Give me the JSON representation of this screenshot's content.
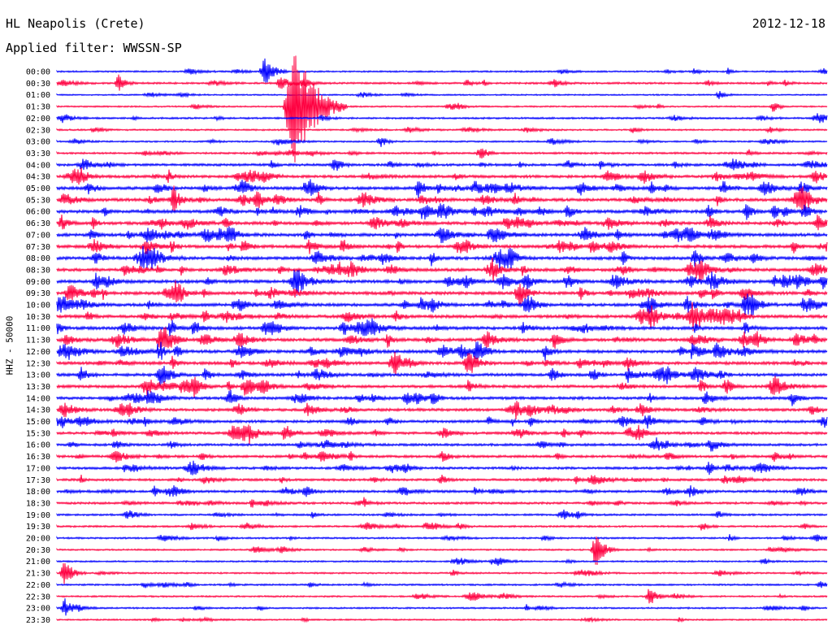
{
  "header": {
    "station": "HL Neapolis (Crete)",
    "filter": "Applied filter: WWSSN-SP",
    "date": "2012-12-18",
    "channel": "HHZ - 50000"
  },
  "colors": {
    "odd_rows": "#0000ff",
    "even_rows": "#ff0040"
  },
  "chart_data": {
    "type": "line",
    "title": "HL Neapolis (Crete)",
    "subtitle": "Applied filter: WWSSN-SP",
    "ylabel": "HHZ - 50000",
    "rows": [
      "00:00",
      "00:30",
      "01:00",
      "01:30",
      "02:00",
      "02:30",
      "03:00",
      "03:30",
      "04:00",
      "04:30",
      "05:00",
      "05:30",
      "06:00",
      "06:30",
      "07:00",
      "07:30",
      "08:00",
      "08:30",
      "09:00",
      "09:30",
      "10:00",
      "10:30",
      "11:00",
      "11:30",
      "12:00",
      "12:30",
      "13:00",
      "13:30",
      "14:00",
      "14:30",
      "15:00",
      "15:30",
      "16:00",
      "16:30",
      "17:00",
      "17:30",
      "18:00",
      "18:30",
      "19:00",
      "19:30",
      "20:00",
      "20:30",
      "21:00",
      "21:30",
      "22:00",
      "22:30",
      "23:00",
      "23:30"
    ],
    "row_activity": [
      0.3,
      0.45,
      0.2,
      0.25,
      0.4,
      0.3,
      0.3,
      0.45,
      0.7,
      0.85,
      1.0,
      1.0,
      1.0,
      1.0,
      1.0,
      1.0,
      1.0,
      1.0,
      1.0,
      1.0,
      1.0,
      1.0,
      1.0,
      1.0,
      1.0,
      0.95,
      0.9,
      0.9,
      0.85,
      0.85,
      0.8,
      0.75,
      0.7,
      0.7,
      0.7,
      0.65,
      0.7,
      0.6,
      0.45,
      0.4,
      0.35,
      0.3,
      0.3,
      0.3,
      0.35,
      0.3,
      0.3,
      0.25
    ],
    "series_colors": [
      "#0000ff",
      "#ff0040"
    ],
    "events": [
      {
        "row": 0,
        "x_frac": 0.27,
        "amp": 20
      },
      {
        "row": 1,
        "x_frac": 0.08,
        "amp": 10
      },
      {
        "row": 1,
        "x_frac": 0.29,
        "amp": 12
      },
      {
        "row": 2,
        "x_frac": 0.86,
        "amp": 5
      },
      {
        "row": 3,
        "x_frac": 0.93,
        "amp": 7
      },
      {
        "row": 3,
        "x_frac": 0.31,
        "amp": 80
      },
      {
        "row": 6,
        "x_frac": 0.42,
        "amp": 7
      },
      {
        "row": 7,
        "x_frac": 0.55,
        "amp": 9
      },
      {
        "row": 8,
        "x_frac": 0.36,
        "amp": 10
      },
      {
        "row": 19,
        "x_frac": 0.6,
        "amp": 16
      },
      {
        "row": 20,
        "x_frac": 0.61,
        "amp": 16
      },
      {
        "row": 41,
        "x_frac": 0.7,
        "amp": 22
      },
      {
        "row": 43,
        "x_frac": 0.01,
        "amp": 18
      },
      {
        "row": 45,
        "x_frac": 0.77,
        "amp": 12
      },
      {
        "row": 46,
        "x_frac": 0.01,
        "amp": 12
      }
    ]
  }
}
